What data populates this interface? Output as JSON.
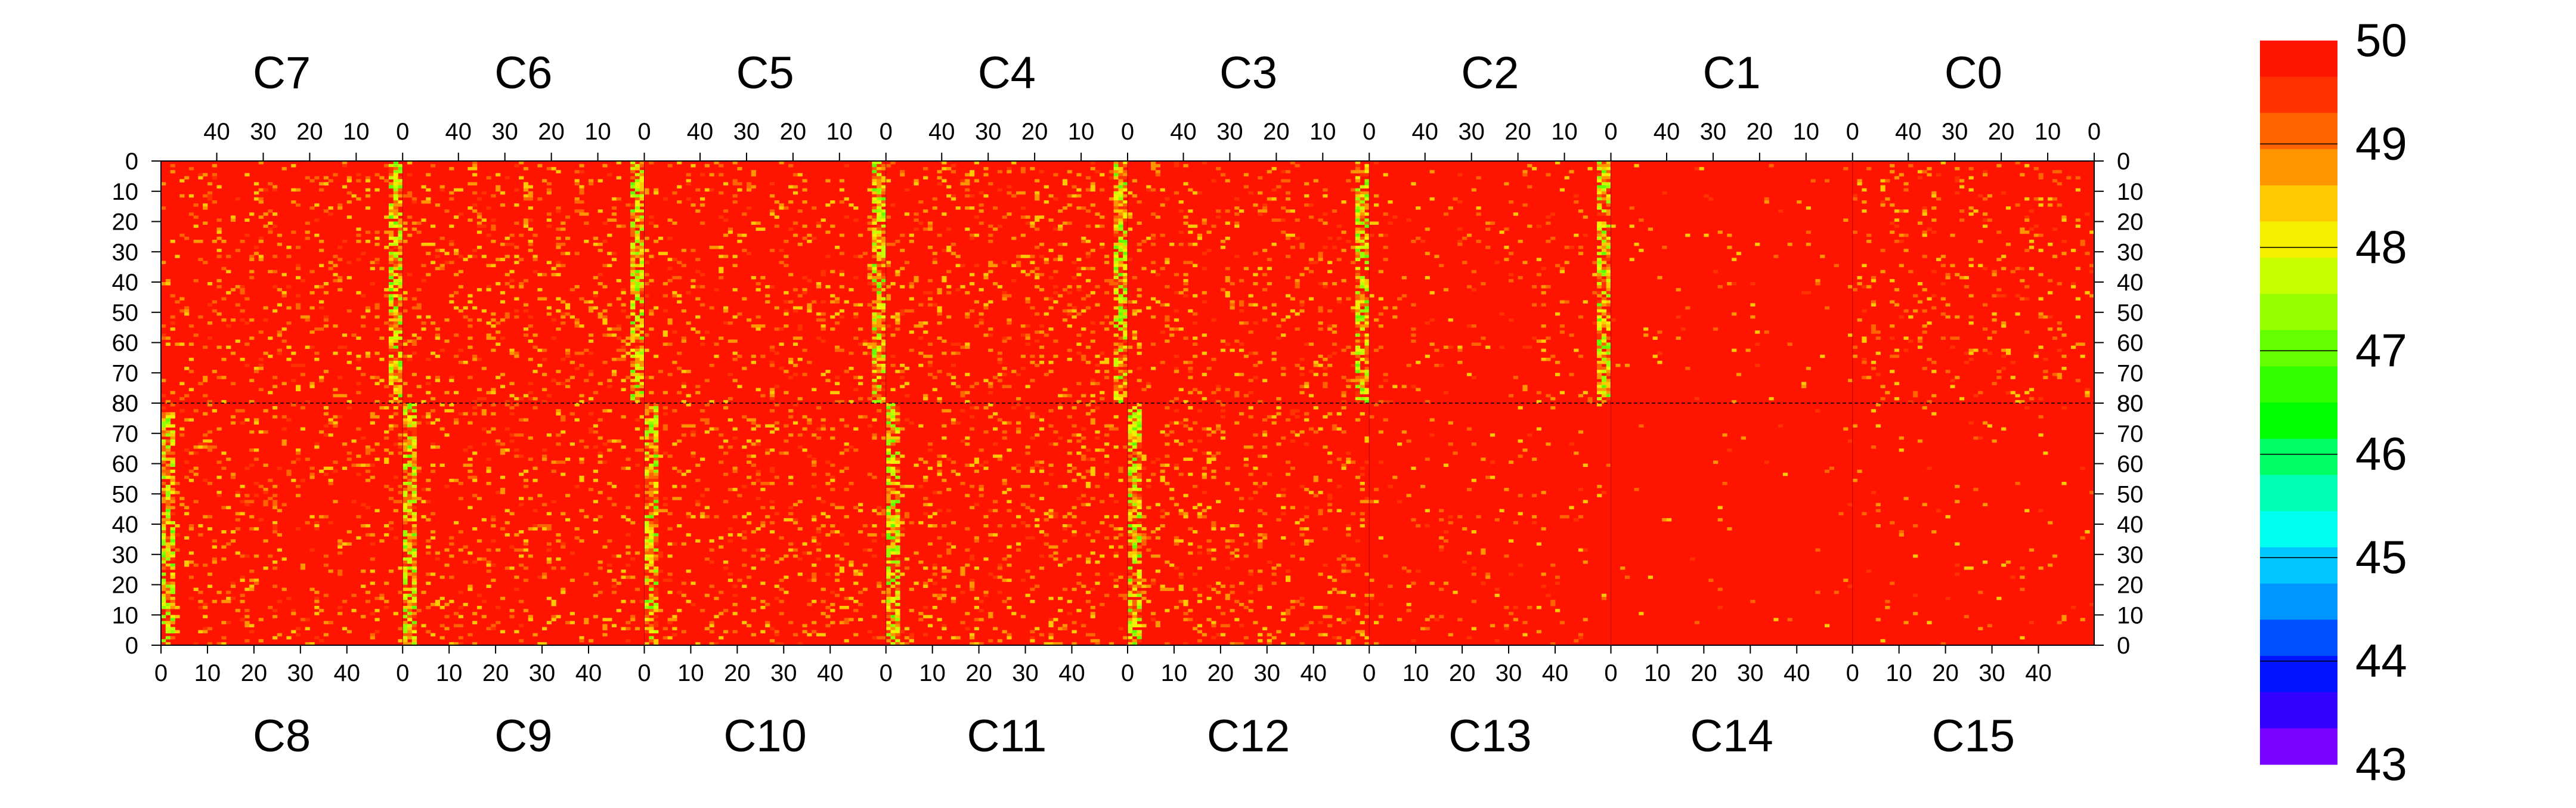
{
  "chart_data": {
    "type": "heatmap",
    "title": "",
    "xlabel": "",
    "ylabel": "",
    "top_row": {
      "chips": [
        "C7",
        "C6",
        "C5",
        "C4",
        "C3",
        "C2",
        "C1",
        "C0"
      ],
      "x_ticks": [
        "40",
        "30",
        "20",
        "10",
        "0"
      ],
      "x_range": [
        52,
        0
      ],
      "y_ticks": [
        "0",
        "10",
        "20",
        "30",
        "40",
        "50",
        "60",
        "70",
        "80"
      ],
      "y_range": [
        0,
        80
      ]
    },
    "bottom_row": {
      "chips": [
        "C8",
        "C9",
        "C10",
        "C11",
        "C12",
        "C13",
        "C14",
        "C15"
      ],
      "x_ticks": [
        "0",
        "10",
        "20",
        "30",
        "40"
      ],
      "x_range": [
        0,
        52
      ],
      "y_ticks": [
        "80",
        "70",
        "60",
        "50",
        "40",
        "30",
        "20",
        "10",
        "0"
      ],
      "y_range": [
        80,
        0
      ]
    },
    "z_range": [
      43,
      50
    ],
    "colorbar": {
      "labels": [
        "50",
        "49",
        "48",
        "47",
        "46",
        "45",
        "44",
        "43"
      ],
      "colors": [
        "#ff1400",
        "#ff3200",
        "#ff6400",
        "#ff9600",
        "#ffc800",
        "#f5f000",
        "#c8ff00",
        "#96ff00",
        "#64ff00",
        "#32ff00",
        "#00ff00",
        "#00ff64",
        "#00ffb4",
        "#00fff0",
        "#00c8ff",
        "#0096ff",
        "#0050ff",
        "#0014ff",
        "#3200ff",
        "#7a00ff"
      ]
    },
    "dominant_value": 50,
    "low_value_columns": {
      "top": [
        0,
        0,
        0,
        0,
        0,
        0,
        0,
        0
      ],
      "note": "strip of lower values (45-49) near column 0 of each chip in rows C2-C8 boundary"
    }
  }
}
